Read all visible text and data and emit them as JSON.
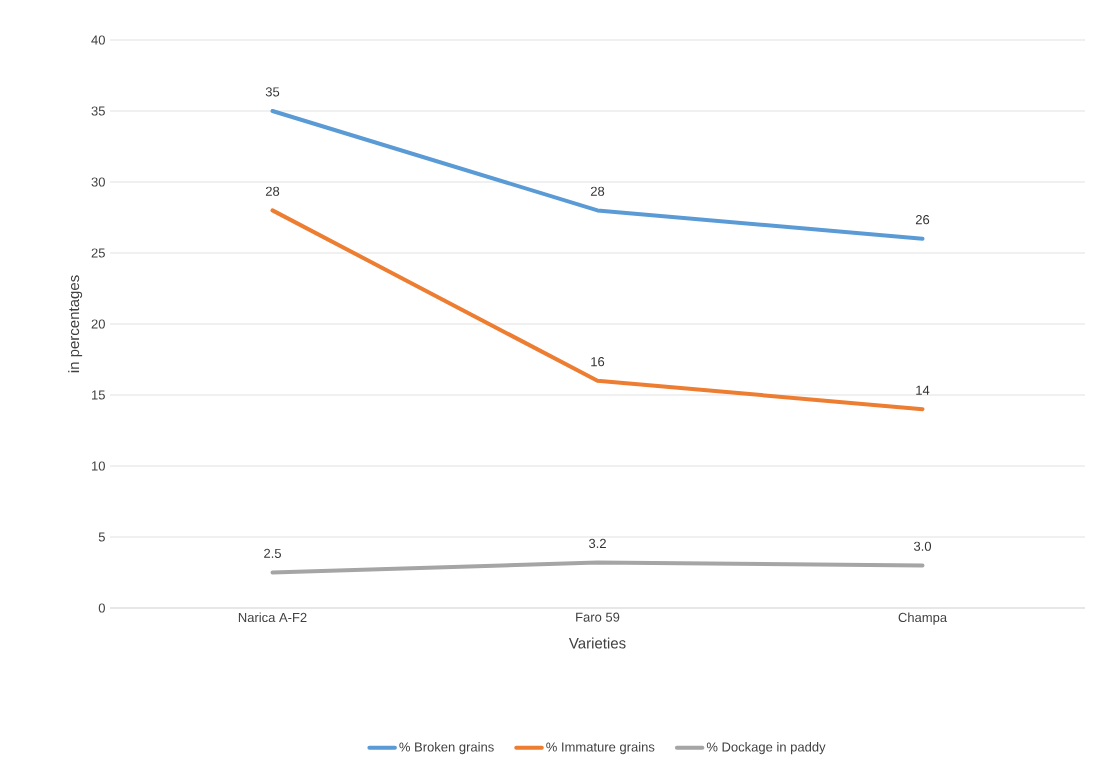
{
  "chart_data": {
    "type": "line",
    "xlabel": "Varieties",
    "ylabel": "in percentages",
    "categories": [
      "Narica A-F2",
      "Faro 59",
      "Champa"
    ],
    "series": [
      {
        "name": "% Broken grains",
        "color": "#5b9bd5",
        "values": [
          35,
          28,
          26
        ],
        "value_labels": [
          "35",
          "28",
          "26"
        ]
      },
      {
        "name": "% Immature grains",
        "color": "#ed7d31",
        "values": [
          28,
          16,
          14
        ],
        "value_labels": [
          "28",
          "16",
          "14"
        ]
      },
      {
        "name": "% Dockage in paddy",
        "color": "#a5a5a5",
        "values": [
          2.5,
          3.2,
          3.0
        ],
        "value_labels": [
          "2.5",
          "3.2",
          "3.0"
        ]
      }
    ],
    "ylim": [
      0,
      40
    ],
    "yticks": [
      0,
      5,
      10,
      15,
      20,
      25,
      30,
      35,
      40
    ],
    "grid": "y",
    "legend": "bottom"
  }
}
